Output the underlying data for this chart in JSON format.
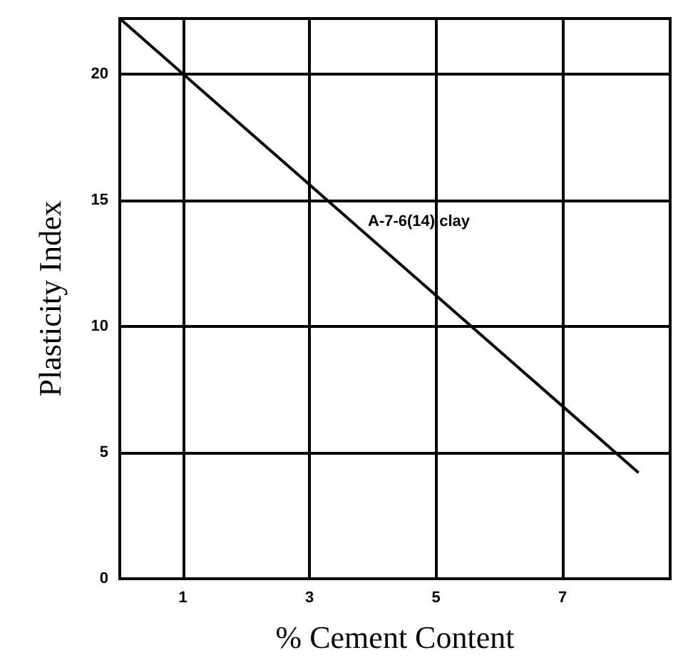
{
  "chart_data": {
    "type": "line",
    "xlabel": "% Cement Content",
    "ylabel": "Plasticity Index",
    "x": [
      0,
      8.2
    ],
    "series": [
      {
        "color": "#000000",
        "values": [
          22.2,
          4.2
        ]
      }
    ],
    "annotations": [
      "A-7-6(14) clay"
    ],
    "xlim": [
      0,
      8.7
    ],
    "ylim": [
      0,
      22.2
    ],
    "xticks": [
      1,
      3,
      5,
      7
    ],
    "yticks": [
      0,
      5,
      10,
      15,
      20
    ],
    "grid": true,
    "marker": "none",
    "line_style": "solid"
  }
}
